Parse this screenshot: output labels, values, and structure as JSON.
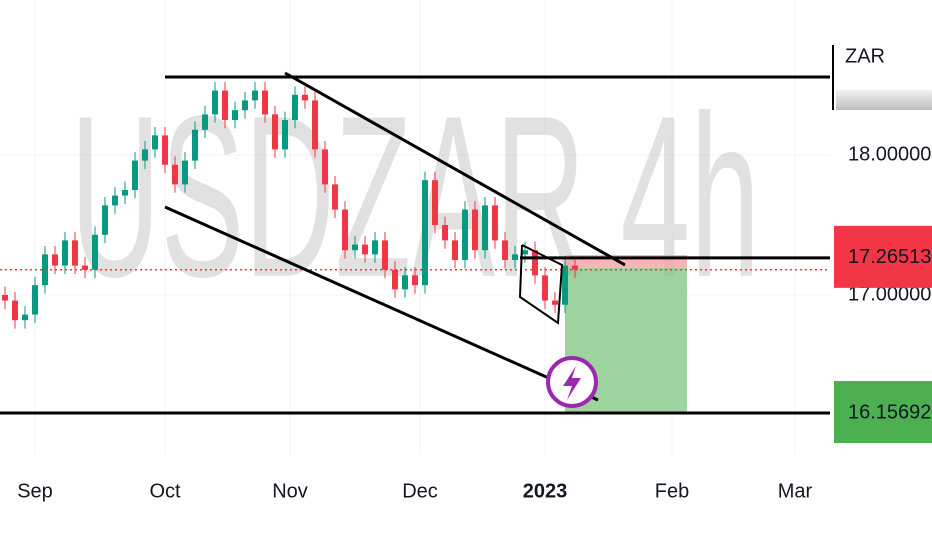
{
  "chart_data": {
    "type": "candlestick",
    "watermark": "USDZAR 4h",
    "currency": "ZAR",
    "up_color": "#089981",
    "down_color": "#f23645",
    "xlim": [
      -0.5,
      82.5
    ],
    "xticks": [
      {
        "value": 3,
        "label": "Sep"
      },
      {
        "value": 16,
        "label": "Oct"
      },
      {
        "value": 28.5,
        "label": "Nov"
      },
      {
        "value": 41.5,
        "label": "Dec"
      },
      {
        "value": 54,
        "label": "2023"
      },
      {
        "value": 66.7,
        "label": "Feb"
      },
      {
        "value": 79,
        "label": "Mar"
      }
    ],
    "ylim": [
      15.857,
      19.107
    ],
    "yticks": [
      {
        "value": 18,
        "label": "18.00000"
      },
      {
        "value": 17,
        "label": "17.00000"
      }
    ],
    "grid": true,
    "price_markers": [
      {
        "value": 17.26513,
        "label": "17.26513",
        "color": "#f23645"
      },
      {
        "value": 16.15692,
        "label": "16.15692",
        "color": "#4caf50"
      }
    ],
    "open": [
      17.0,
      16.96,
      16.82,
      16.86,
      17.07,
      17.29,
      17.21,
      17.39,
      17.21,
      17.18,
      17.43,
      17.64,
      17.71,
      17.75,
      17.96,
      18.04,
      18.14,
      17.93,
      17.79,
      17.96,
      18.18,
      18.29,
      18.46,
      18.25,
      18.32,
      18.39,
      18.46,
      18.29,
      18.04,
      18.25,
      18.43,
      18.39,
      18.04,
      17.79,
      17.61,
      17.32,
      17.36,
      17.29,
      17.39,
      17.18,
      17.04,
      17.14,
      17.07,
      17.82,
      17.5,
      17.39,
      17.25,
      17.61,
      17.32,
      17.64,
      17.39,
      17.25,
      17.29,
      17.32,
      17.14,
      16.96,
      16.93,
      17.21
    ],
    "high": [
      17.06,
      17.02,
      16.92,
      17.13,
      17.35,
      17.35,
      17.45,
      17.45,
      17.27,
      17.49,
      17.7,
      17.77,
      17.81,
      18.02,
      18.1,
      18.2,
      18.2,
      17.99,
      18.02,
      18.24,
      18.35,
      18.52,
      18.52,
      18.38,
      18.45,
      18.52,
      18.52,
      18.35,
      18.31,
      18.49,
      18.49,
      18.45,
      18.1,
      17.85,
      17.67,
      17.42,
      17.42,
      17.45,
      17.45,
      17.24,
      17.2,
      17.2,
      17.88,
      17.88,
      17.56,
      17.45,
      17.67,
      17.67,
      17.7,
      17.7,
      17.45,
      17.35,
      17.38,
      17.38,
      17.2,
      17.02,
      17.27,
      17.27
    ],
    "low": [
      16.9,
      16.76,
      16.76,
      16.8,
      17.01,
      17.15,
      17.15,
      17.15,
      17.12,
      17.12,
      17.37,
      17.58,
      17.65,
      17.69,
      17.9,
      17.98,
      17.87,
      17.73,
      17.73,
      17.9,
      18.12,
      18.23,
      18.19,
      18.19,
      18.26,
      18.33,
      18.23,
      17.98,
      17.98,
      18.19,
      18.33,
      17.98,
      17.73,
      17.55,
      17.26,
      17.26,
      17.23,
      17.23,
      17.12,
      16.98,
      16.98,
      17.01,
      17.01,
      17.44,
      17.33,
      17.19,
      17.19,
      17.26,
      17.26,
      17.33,
      17.19,
      17.19,
      17.23,
      17.08,
      16.9,
      16.87,
      16.87,
      17.12
    ],
    "close": [
      16.96,
      16.82,
      16.86,
      17.07,
      17.29,
      17.21,
      17.39,
      17.21,
      17.18,
      17.43,
      17.64,
      17.71,
      17.75,
      17.96,
      18.04,
      18.14,
      17.93,
      17.79,
      17.96,
      18.18,
      18.29,
      18.46,
      18.25,
      18.32,
      18.39,
      18.46,
      18.29,
      18.04,
      18.25,
      18.43,
      18.39,
      18.04,
      17.79,
      17.61,
      17.32,
      17.36,
      17.29,
      17.39,
      17.18,
      17.04,
      17.14,
      17.07,
      17.82,
      17.5,
      17.39,
      17.25,
      17.61,
      17.32,
      17.64,
      17.39,
      17.25,
      17.29,
      17.32,
      17.14,
      16.96,
      16.93,
      17.21,
      17.18
    ]
  }
}
